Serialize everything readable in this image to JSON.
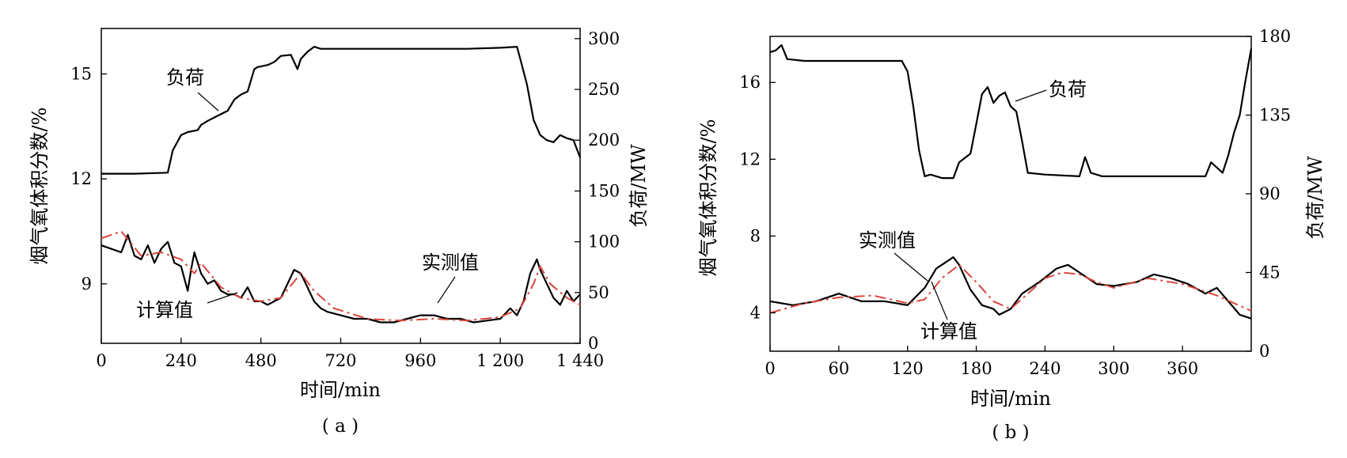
{
  "chart_data": [
    {
      "type": "line",
      "caption": "( a )",
      "xlabel": "时间/min",
      "ylabel": "烟气氧体积分数/%",
      "y2label": "负荷/MW",
      "xlim": [
        0,
        1440
      ],
      "ylim": [
        7.3,
        16.3
      ],
      "y2lim": [
        0,
        310
      ],
      "xticks": [
        "0",
        "240",
        "480",
        "720",
        "960",
        "1 200",
        "1 440"
      ],
      "xtick_values": [
        0,
        240,
        480,
        720,
        960,
        1200,
        1440
      ],
      "yticks": [
        "9",
        "12",
        "15"
      ],
      "ytick_values": [
        9,
        12,
        15
      ],
      "y2ticks": [
        "0",
        "50",
        "100",
        "150",
        "200",
        "250",
        "300"
      ],
      "y2tick_values": [
        0,
        50,
        100,
        150,
        200,
        250,
        300
      ],
      "annotations": [
        "负荷",
        "实测值",
        "计算值"
      ],
      "series": [
        {
          "name": "负荷",
          "axis": "right",
          "style": "solid",
          "color": "#000000",
          "x": [
            0,
            100,
            200,
            215,
            240,
            260,
            290,
            300,
            320,
            350,
            380,
            400,
            420,
            440,
            460,
            470,
            500,
            520,
            540,
            570,
            590,
            600,
            620,
            640,
            660,
            700,
            800,
            900,
            1000,
            1100,
            1200,
            1250,
            1260,
            1280,
            1300,
            1320,
            1340,
            1360,
            1380,
            1400,
            1420,
            1440
          ],
          "values": [
            167,
            167,
            168,
            190,
            205,
            208,
            210,
            215,
            219,
            224,
            229,
            240,
            245,
            248,
            270,
            272,
            274,
            277,
            283,
            284,
            270,
            280,
            287,
            292,
            290,
            290,
            290,
            290,
            290,
            290,
            291,
            292,
            280,
            255,
            220,
            205,
            200,
            198,
            205,
            202,
            200,
            183
          ]
        },
        {
          "name": "实测值",
          "axis": "left",
          "style": "solid",
          "color": "#000000",
          "x": [
            0,
            30,
            60,
            80,
            100,
            120,
            140,
            160,
            180,
            200,
            220,
            240,
            260,
            270,
            280,
            300,
            320,
            340,
            360,
            380,
            400,
            420,
            440,
            460,
            480,
            500,
            520,
            540,
            560,
            580,
            600,
            620,
            640,
            660,
            680,
            720,
            760,
            800,
            840,
            880,
            920,
            960,
            1000,
            1040,
            1080,
            1120,
            1160,
            1200,
            1230,
            1250,
            1270,
            1290,
            1310,
            1320,
            1340,
            1360,
            1380,
            1400,
            1420,
            1440
          ],
          "values": [
            10.1,
            10.0,
            9.9,
            10.4,
            9.8,
            9.7,
            10.1,
            9.6,
            10.0,
            10.2,
            9.6,
            9.5,
            8.8,
            9.4,
            9.9,
            9.3,
            9.0,
            9.1,
            8.8,
            8.7,
            8.7,
            8.6,
            8.9,
            8.5,
            8.5,
            8.4,
            8.5,
            8.6,
            9.0,
            9.4,
            9.3,
            8.9,
            8.5,
            8.3,
            8.2,
            8.1,
            8.0,
            8.0,
            7.9,
            7.9,
            8.0,
            8.1,
            8.1,
            8.0,
            8.0,
            7.9,
            7.95,
            8.0,
            8.3,
            8.1,
            8.5,
            9.3,
            9.7,
            9.4,
            9.0,
            8.6,
            8.4,
            8.8,
            8.5,
            8.7
          ]
        },
        {
          "name": "计算值",
          "axis": "left",
          "style": "dash-dot",
          "color": "#d9463e",
          "x": [
            0,
            60,
            120,
            180,
            240,
            280,
            300,
            360,
            420,
            480,
            540,
            600,
            640,
            700,
            800,
            900,
            1000,
            1100,
            1200,
            1260,
            1300,
            1320,
            1350,
            1400,
            1440
          ],
          "values": [
            10.3,
            10.5,
            9.8,
            9.9,
            9.7,
            9.3,
            9.6,
            8.9,
            8.6,
            8.5,
            8.6,
            9.3,
            8.8,
            8.3,
            8.0,
            7.95,
            8.0,
            7.95,
            8.05,
            8.3,
            9.0,
            9.5,
            9.0,
            8.6,
            8.4
          ]
        }
      ]
    },
    {
      "type": "line",
      "caption": "( b )",
      "xlabel": "时间/min",
      "ylabel": "烟气氧体积分数/%",
      "y2label": "负荷/MW",
      "xlim": [
        0,
        420
      ],
      "ylim": [
        2,
        18.4
      ],
      "y2lim": [
        0,
        180
      ],
      "xticks": [
        "0",
        "60",
        "120",
        "180",
        "240",
        "300",
        "360"
      ],
      "xtick_values": [
        0,
        60,
        120,
        180,
        240,
        300,
        360
      ],
      "yticks": [
        "4",
        "8",
        "12",
        "16"
      ],
      "ytick_values": [
        4,
        8,
        12,
        16
      ],
      "y2ticks": [
        "0",
        "45",
        "90",
        "135",
        "180"
      ],
      "y2tick_values": [
        0,
        45,
        90,
        135,
        180
      ],
      "annotations": [
        "负荷",
        "实测值",
        "计算值"
      ],
      "series": [
        {
          "name": "负荷",
          "axis": "right",
          "style": "solid",
          "color": "#000000",
          "x": [
            0,
            5,
            10,
            15,
            30,
            60,
            90,
            115,
            120,
            125,
            130,
            135,
            140,
            150,
            160,
            165,
            175,
            180,
            185,
            190,
            195,
            200,
            205,
            210,
            215,
            220,
            225,
            240,
            270,
            275,
            280,
            290,
            300,
            330,
            360,
            380,
            385,
            395,
            400,
            405,
            410,
            415,
            420
          ],
          "values": [
            171,
            172,
            175,
            167,
            166,
            166,
            166,
            166,
            160,
            140,
            115,
            100,
            101,
            99,
            99,
            108,
            113,
            130,
            147,
            151,
            142,
            146,
            148,
            140,
            137,
            120,
            102,
            101,
            100,
            111,
            102,
            100,
            100,
            100,
            100,
            100,
            108,
            102,
            112,
            125,
            135,
            155,
            173
          ]
        },
        {
          "name": "实测值",
          "axis": "left",
          "style": "solid",
          "color": "#000000",
          "x": [
            0,
            20,
            40,
            60,
            80,
            100,
            110,
            120,
            135,
            145,
            155,
            160,
            165,
            175,
            185,
            195,
            200,
            210,
            220,
            235,
            250,
            260,
            270,
            285,
            300,
            320,
            335,
            350,
            365,
            380,
            390,
            400,
            410,
            420
          ],
          "values": [
            4.6,
            4.4,
            4.6,
            5.0,
            4.6,
            4.6,
            4.5,
            4.4,
            5.3,
            6.3,
            6.7,
            6.9,
            6.5,
            5.2,
            4.4,
            4.2,
            3.9,
            4.2,
            5.0,
            5.6,
            6.3,
            6.5,
            6.1,
            5.5,
            5.4,
            5.6,
            6.0,
            5.8,
            5.5,
            5.0,
            5.3,
            4.6,
            3.9,
            3.7
          ]
        },
        {
          "name": "计算值",
          "axis": "left",
          "style": "dash-dot",
          "color": "#d9463e",
          "x": [
            0,
            30,
            60,
            90,
            120,
            135,
            150,
            165,
            180,
            195,
            210,
            240,
            255,
            270,
            285,
            300,
            330,
            360,
            390,
            420
          ],
          "values": [
            4.0,
            4.5,
            4.8,
            4.9,
            4.5,
            4.7,
            5.8,
            6.5,
            5.6,
            4.6,
            4.2,
            5.8,
            6.1,
            6.0,
            5.6,
            5.3,
            5.8,
            5.5,
            4.9,
            4.1
          ]
        }
      ]
    }
  ]
}
